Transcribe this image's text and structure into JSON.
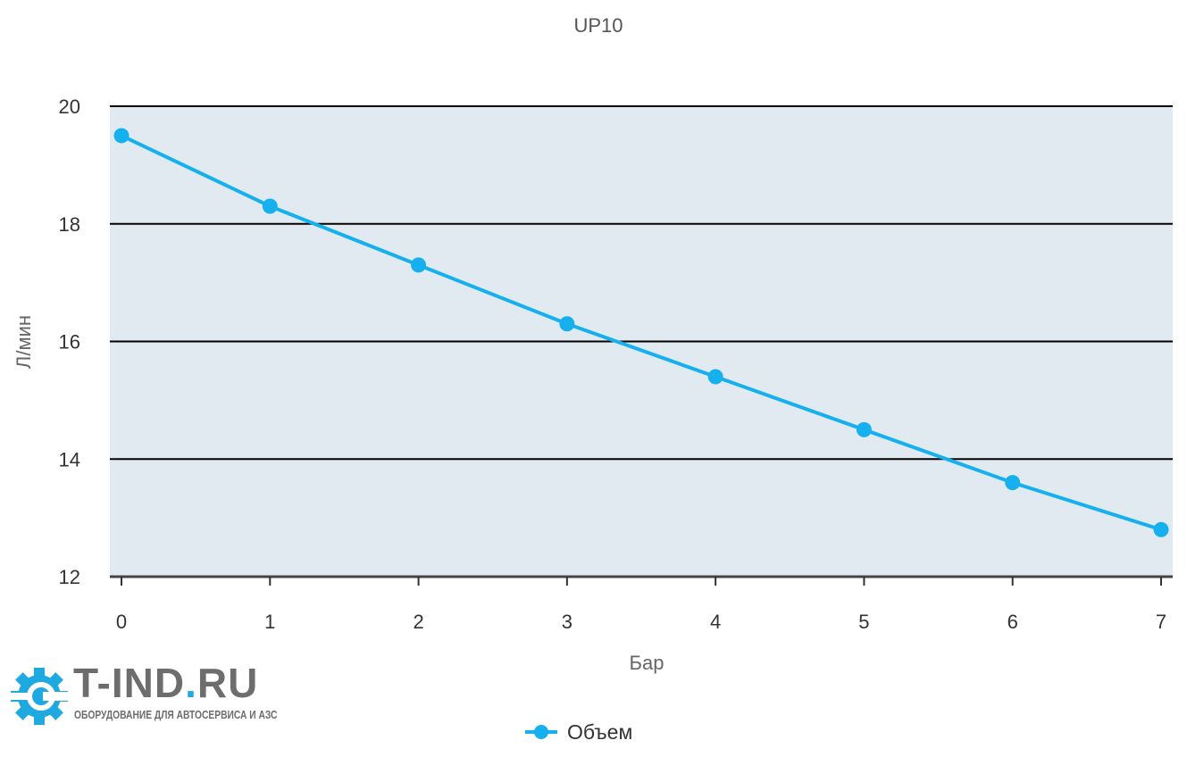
{
  "chart_data": {
    "type": "line",
    "title": "UP10",
    "xlabel": "Бар",
    "ylabel": "Л/мин",
    "x": [
      0,
      1,
      2,
      3,
      4,
      5,
      6,
      7
    ],
    "series": [
      {
        "name": "Объем",
        "values": [
          19.5,
          18.3,
          17.3,
          16.3,
          15.4,
          14.5,
          13.6,
          12.8
        ],
        "color": "#17b0ee"
      }
    ],
    "xlim": [
      0,
      7
    ],
    "ylim": [
      12,
      20
    ],
    "yticks": [
      12,
      14,
      16,
      18,
      20
    ],
    "xticks": [
      0,
      1,
      2,
      3,
      4,
      5,
      6,
      7
    ],
    "grid": true,
    "plot_background": "#e1eaf1",
    "legend_position": "bottom"
  },
  "logo": {
    "name_part1": "T-IND",
    "name_dot": ".",
    "name_part2": "RU",
    "tagline": "ОБОРУДОВАНИЕ ДЛЯ АВТОСЕРВИСА И АЗС"
  }
}
